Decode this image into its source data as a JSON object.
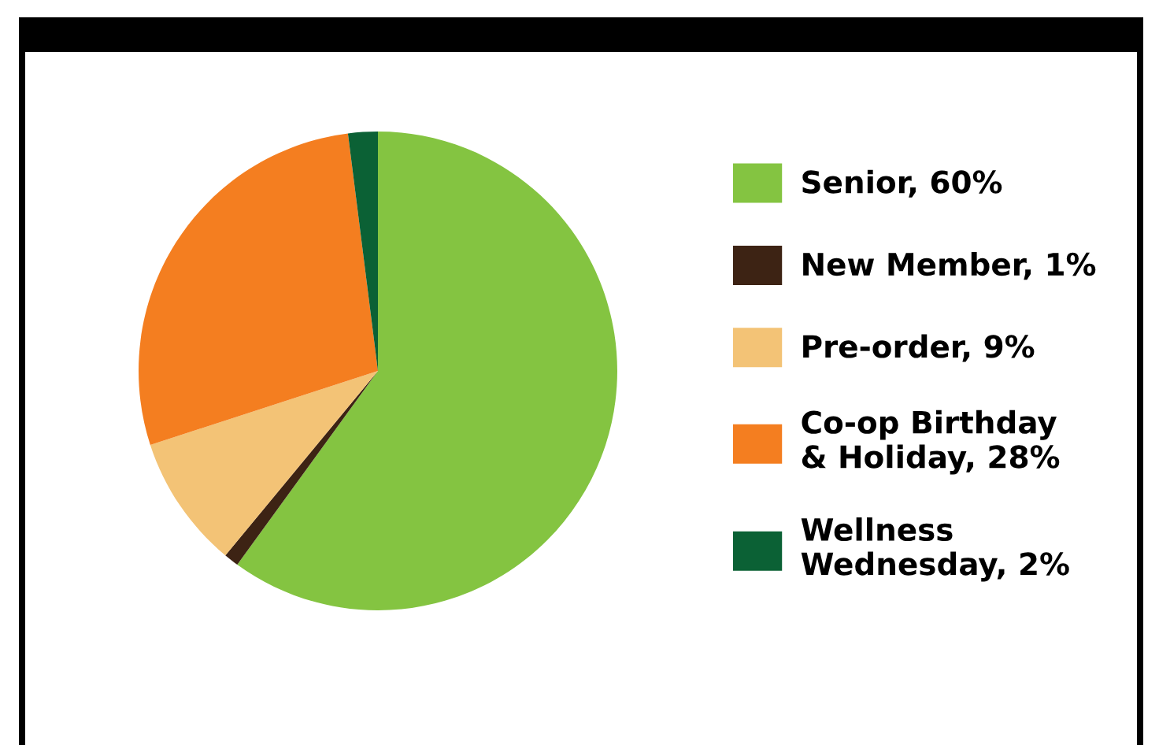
{
  "chart_data": {
    "type": "pie",
    "categories": [
      "Senior, 60%",
      "New Member, 1%",
      "Pre-order, 9%",
      "Co-op Birthday\n& Holiday, 28%",
      "Wellness\nWednesday, 2%"
    ],
    "values": [
      60,
      1,
      9,
      28,
      2
    ],
    "colors": [
      "#84c441",
      "#3d2314",
      "#f3c376",
      "#f47e20",
      "#0b6135"
    ],
    "legend": "right"
  }
}
